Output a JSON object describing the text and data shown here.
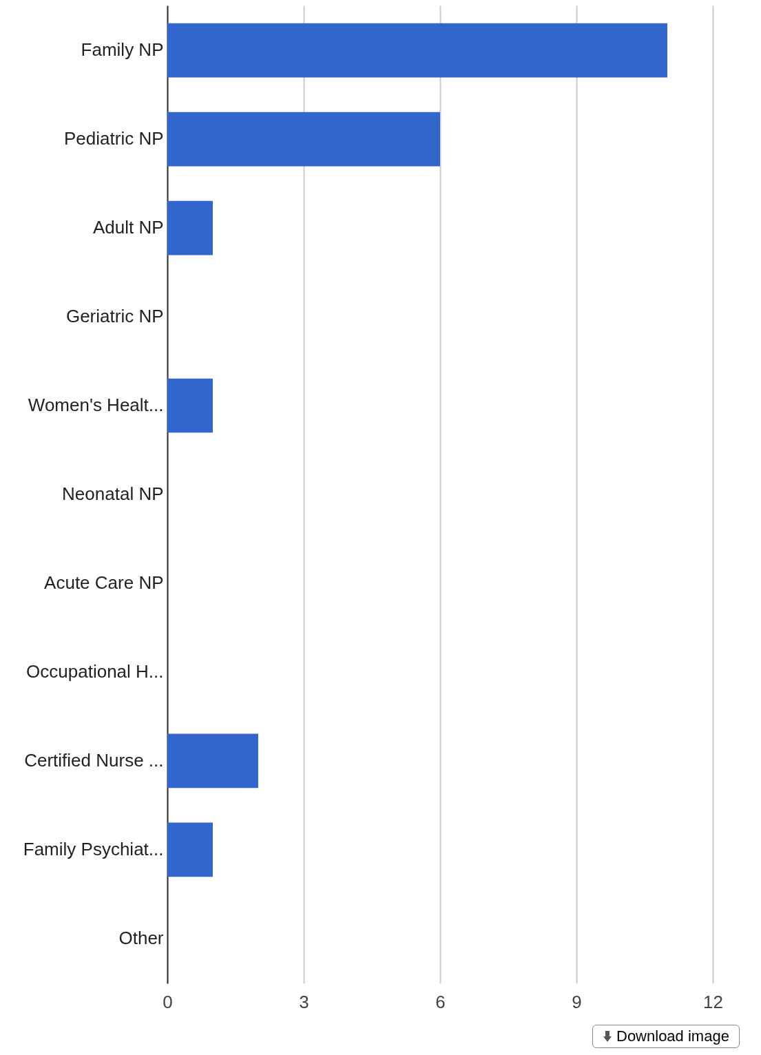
{
  "chart_data": {
    "type": "bar",
    "orientation": "horizontal",
    "categories": [
      "Family NP",
      "Pediatric NP",
      "Adult NP",
      "Geriatric NP",
      "Women's Healt...",
      "Neonatal NP",
      "Acute Care NP",
      "Occupational H...",
      "Certified Nurse ...",
      "Family Psychiat...",
      "Other"
    ],
    "values": [
      11,
      6,
      1,
      0,
      1,
      0,
      0,
      0,
      2,
      1,
      0
    ],
    "color": "#3366cc",
    "xlim": [
      0,
      13
    ],
    "xticks": [
      0,
      3,
      6,
      9,
      12
    ],
    "grid": "x",
    "annotations": [
      "Download image"
    ]
  }
}
